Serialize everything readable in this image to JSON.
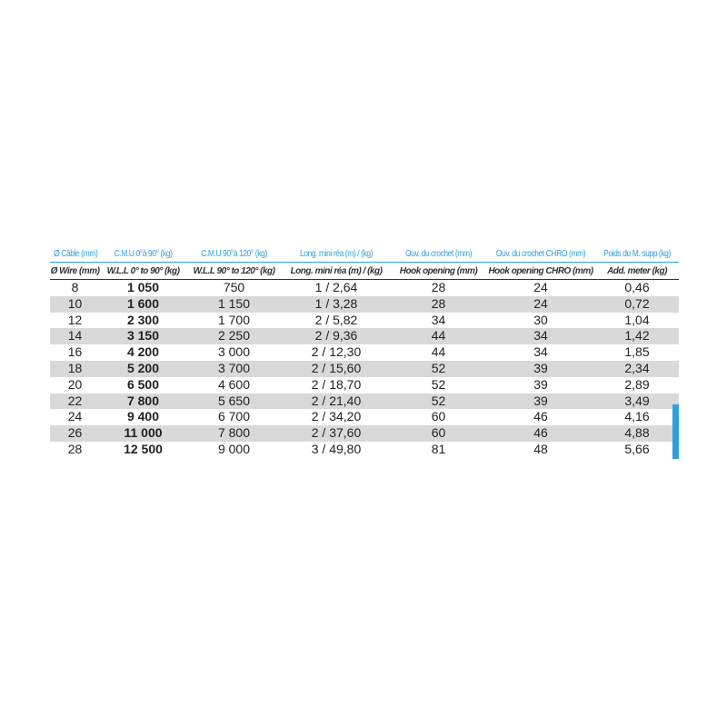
{
  "headers_fr": [
    "Ø Câble (mm)",
    "C.M.U 0°à 90° (kg)",
    "C.M.U 90°à 120° (kg)",
    "Long. mini réa (m) / (kg)",
    "Ouv. du crochet (mm)",
    "Ouv. du crochet CHRO (mm)",
    "Poids du M. supp (kg)"
  ],
  "headers_en": [
    "Ø Wire (mm)",
    "W.L.L 0° to 90° (kg)",
    "W.L.L 90° to 120° (kg)",
    "Long. mini réa (m) / (kg)",
    "Hook opening (mm)",
    "Hook opening CHRO (mm)",
    "Add. meter (kg)"
  ],
  "rows": [
    [
      "8",
      "1 050",
      "750",
      "1 / 2,64",
      "28",
      "24",
      "0,46"
    ],
    [
      "10",
      "1 600",
      "1 150",
      "1 / 3,28",
      "28",
      "24",
      "0,72"
    ],
    [
      "12",
      "2 300",
      "1 700",
      "2 / 5,82",
      "34",
      "30",
      "1,04"
    ],
    [
      "14",
      "3 150",
      "2 250",
      "2 / 9,36",
      "44",
      "34",
      "1,42"
    ],
    [
      "16",
      "4 200",
      "3 000",
      "2 / 12,30",
      "44",
      "34",
      "1,85"
    ],
    [
      "18",
      "5 200",
      "3 700",
      "2 / 15,60",
      "52",
      "39",
      "2,34"
    ],
    [
      "20",
      "6 500",
      "4 600",
      "2 / 18,70",
      "52",
      "39",
      "2,89"
    ],
    [
      "22",
      "7 800",
      "5 650",
      "2 / 21,40",
      "52",
      "39",
      "3,49"
    ],
    [
      "24",
      "9 400",
      "6 700",
      "2 / 34,20",
      "60",
      "46",
      "4,16"
    ],
    [
      "26",
      "11 000",
      "7 800",
      "2 / 37,60",
      "60",
      "46",
      "4,88"
    ],
    [
      "28",
      "12 500",
      "9 000",
      "3 / 49,80",
      "81",
      "48",
      "5,66"
    ]
  ],
  "colors": {
    "accent": "#2f9fdc",
    "stripe": "#d9d9d9"
  }
}
